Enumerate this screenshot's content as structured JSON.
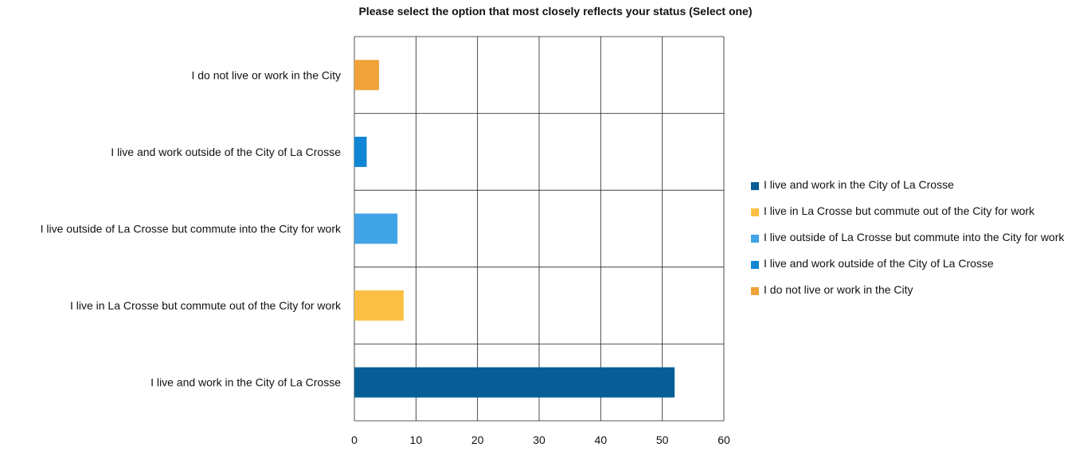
{
  "chart_data": {
    "type": "bar",
    "orientation": "horizontal",
    "title": "Please select the option that most closely reflects your status (Select one)",
    "categories": [
      "I do not live or work in the City",
      "I live and work outside of the City of La Crosse",
      "I live outside of La Crosse but commute into the City for work",
      "I live in La Crosse but commute out of the City for work",
      "I live and work in the City of La Crosse"
    ],
    "values": [
      4,
      2,
      7,
      8,
      52
    ],
    "colors": [
      "#f0a23b",
      "#0e86d4",
      "#41a4e7",
      "#fbbf43",
      "#075e96"
    ],
    "xlim": [
      0,
      60
    ],
    "xticks": [
      0,
      10,
      20,
      30,
      40,
      50,
      60
    ],
    "grid": true,
    "legend_position": "right",
    "legend": [
      {
        "label": "I live and work in the City of La Crosse",
        "color": "#075e96"
      },
      {
        "label": "I live in La Crosse but commute out of the City for work",
        "color": "#fbbf43"
      },
      {
        "label": "I live outside of La Crosse but commute into the City for work",
        "color": "#41a4e7"
      },
      {
        "label": "I live and work outside of the City of La Crosse",
        "color": "#0e86d4"
      },
      {
        "label": "I do not live or work in the City",
        "color": "#f0a23b"
      }
    ]
  }
}
